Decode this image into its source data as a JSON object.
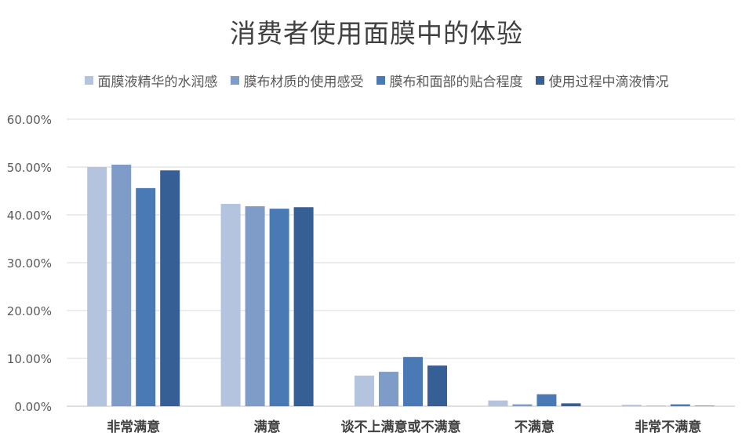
{
  "chart_data": {
    "type": "bar",
    "title": "消费者使用面膜中的体验",
    "categories": [
      "非常满意",
      "满意",
      "谈不上满意或不满意",
      "不满意",
      "非常不满意"
    ],
    "series": [
      {
        "name": "面膜液精华的水润感",
        "color": "#b4c3de",
        "values": [
          50.0,
          42.3,
          6.4,
          1.2,
          0.3
        ]
      },
      {
        "name": "膜布材质的使用感受",
        "color": "#7f9cc9",
        "values": [
          50.5,
          41.8,
          7.2,
          0.4,
          0.1
        ]
      },
      {
        "name": "膜布和面部的贴合程度",
        "color": "#4a7ab5",
        "values": [
          45.6,
          41.3,
          10.3,
          2.5,
          0.4
        ]
      },
      {
        "name": "使用过程中滴液情况",
        "color": "#365f95",
        "values": [
          49.3,
          41.6,
          8.5,
          0.6,
          0.1
        ]
      }
    ],
    "ylim": [
      0,
      60
    ],
    "yticks": [
      "0.00%",
      "10.00%",
      "20.00%",
      "30.00%",
      "40.00%",
      "50.00%",
      "60.00%"
    ],
    "xlabel": "",
    "ylabel": "",
    "grid": true,
    "legend_position": "top"
  }
}
